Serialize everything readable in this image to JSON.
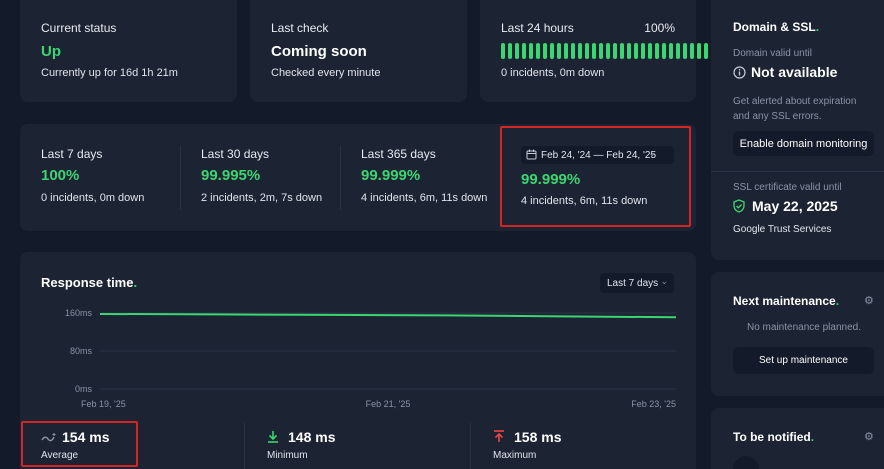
{
  "status": {
    "current": {
      "label": "Current status",
      "value": "Up",
      "sub": "Currently up for 16d 1h 21m"
    },
    "last_check": {
      "label": "Last check",
      "value": "Coming soon",
      "sub": "Checked every minute"
    },
    "last24": {
      "label": "Last 24 hours",
      "percent": "100%",
      "sub": "0 incidents, 0m down",
      "bar_count": 30
    }
  },
  "periods": [
    {
      "label": "Last 7 days",
      "value": "100%",
      "sub": "0 incidents, 0m down"
    },
    {
      "label": "Last 30 days",
      "value": "99.995%",
      "sub": "2 incidents, 2m, 7s down"
    },
    {
      "label": "Last 365 days",
      "value": "99.999%",
      "sub": "4 incidents, 6m, 11s down"
    },
    {
      "label": "Feb 24, '24 — Feb 24, '25",
      "value": "99.999%",
      "sub": "4 incidents, 6m, 11s down"
    }
  ],
  "response": {
    "title": "Response time",
    "range_select": "Last 7 days",
    "stats": [
      {
        "value": "154 ms",
        "label": "Average"
      },
      {
        "value": "148 ms",
        "label": "Minimum"
      },
      {
        "value": "158 ms",
        "label": "Maximum"
      }
    ]
  },
  "chart_data": {
    "type": "line",
    "title": "Response time",
    "y_ticks": [
      "160ms",
      "80ms",
      "0ms"
    ],
    "x_ticks": [
      "Feb 19, '25",
      "Feb 21, '25",
      "Feb 23, '25"
    ],
    "ylim": [
      0,
      160
    ],
    "series": [
      {
        "values": [
          158,
          157,
          156,
          155,
          153,
          151
        ]
      }
    ],
    "line_color": "#3bd671",
    "grid": true
  },
  "domain": {
    "title": "Domain & SSL",
    "valid_label": "Domain valid until",
    "valid_value": "Not available",
    "alert_text_1": "Get alerted about expiration",
    "alert_text_2": "and any SSL errors.",
    "button": "Enable domain monitoring",
    "ssl_label": "SSL certificate valid until",
    "ssl_value": "May 22, 2025",
    "issuer": "Google Trust Services"
  },
  "maintenance": {
    "title": "Next maintenance",
    "empty": "No maintenance planned.",
    "button": "Set up maintenance"
  },
  "notify": {
    "title": "To be notified"
  },
  "colors": {
    "green": "#3bd671",
    "background": "#131a2a",
    "card": "#1c2333",
    "highlight": "#d42424"
  }
}
